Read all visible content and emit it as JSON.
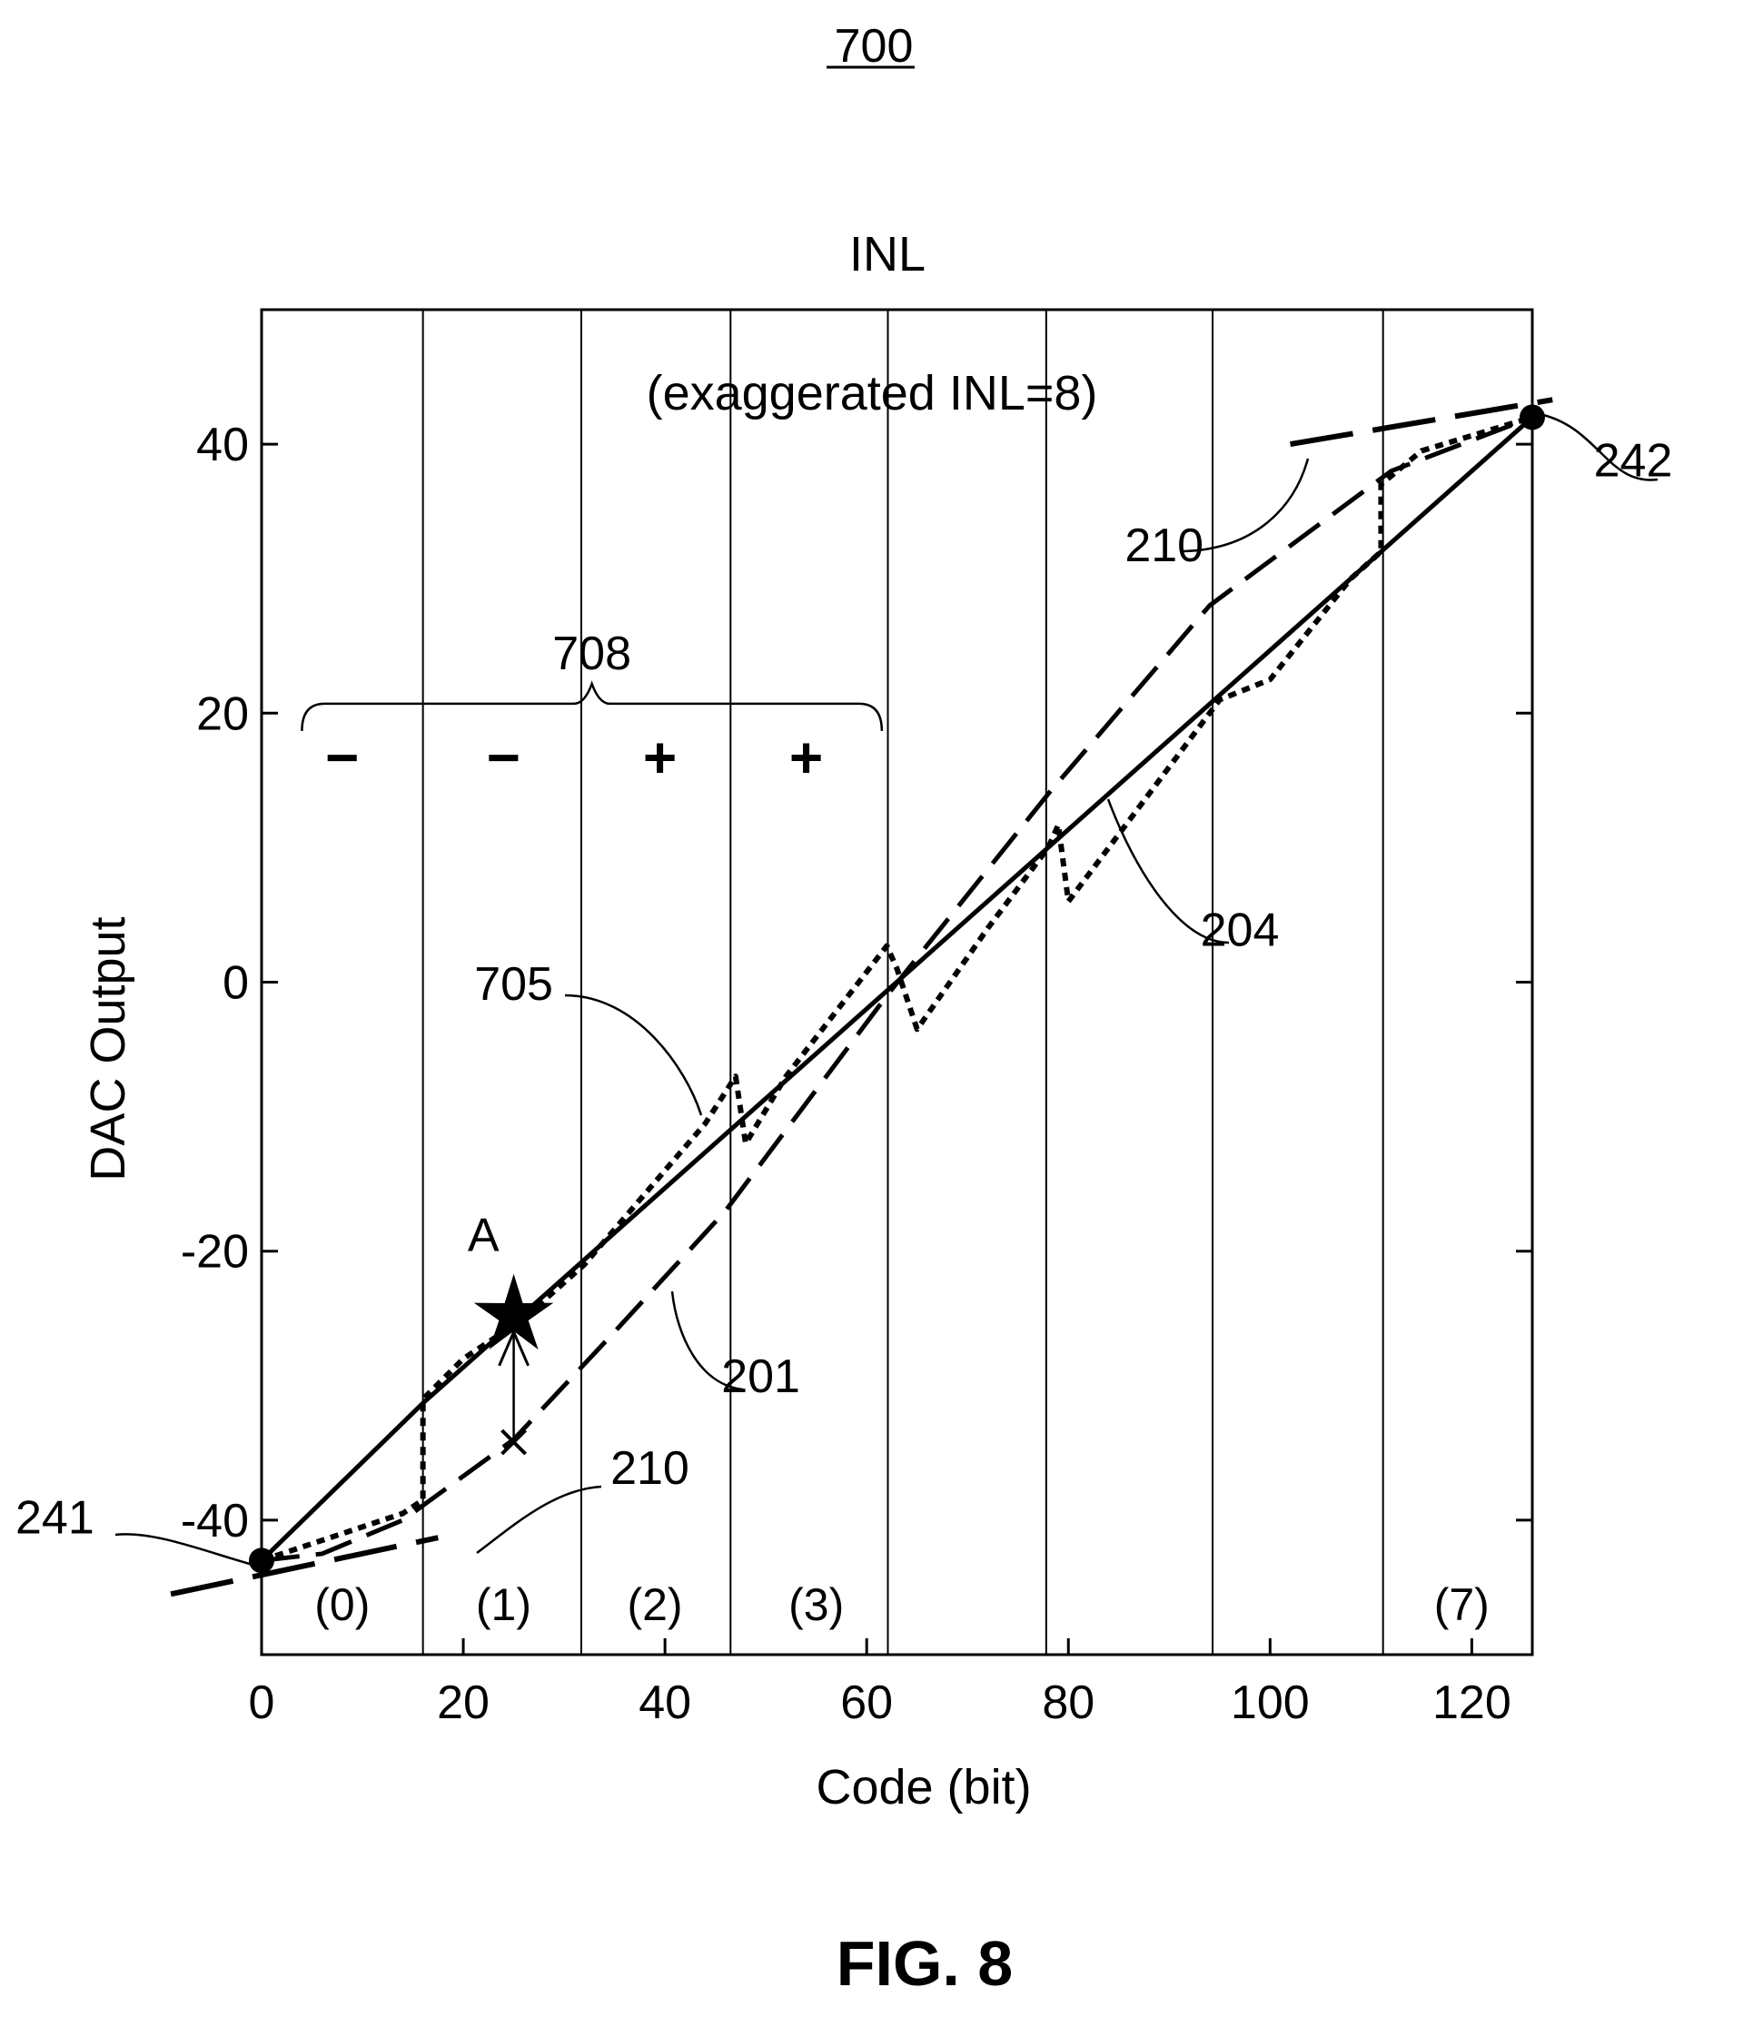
{
  "figure_number": "700",
  "figure_caption": "FIG. 8",
  "chart_data": {
    "type": "line",
    "title": "INL",
    "subtitle": "(exaggerated INL=8)",
    "xlabel": "Code (bit)",
    "ylabel": "DAC Output",
    "xlim": [
      0,
      126
    ],
    "ylim": [
      -50,
      50
    ],
    "x_ticks": [
      0,
      20,
      40,
      60,
      80,
      100,
      120
    ],
    "y_ticks": [
      -40,
      -20,
      0,
      20,
      40
    ],
    "segment_boundaries": [
      16,
      31.7,
      46.5,
      62.1,
      77.8,
      94.3,
      111.2
    ],
    "segment_labels": [
      {
        "text": "(0)",
        "x": 8
      },
      {
        "text": "(1)",
        "x": 24
      },
      {
        "text": "(2)",
        "x": 39
      },
      {
        "text": "(3)",
        "x": 55
      },
      {
        "text": "(7)",
        "x": 119
      }
    ],
    "bracket": {
      "label": "708",
      "x_range": [
        4,
        61.5
      ],
      "y": 20.7
    },
    "signs": [
      {
        "text": "−",
        "x": 8,
        "y": 16.7
      },
      {
        "text": "−",
        "x": 24,
        "y": 16.7
      },
      {
        "text": "+",
        "x": 39.5,
        "y": 16.7
      },
      {
        "text": "+",
        "x": 54,
        "y": 16.7
      }
    ],
    "series": [
      {
        "id": "204",
        "style": "solid",
        "x": [
          0,
          16,
          126
        ],
        "y": [
          -43,
          -31.3,
          42
        ]
      },
      {
        "id": "201",
        "style": "dashed",
        "x": [
          0,
          6,
          14,
          25,
          35,
          46,
          62,
          78,
          94,
          112,
          126
        ],
        "y": [
          -43,
          -42.5,
          -40,
          -34,
          -26,
          -17,
          -1,
          14,
          28,
          38,
          42
        ]
      },
      {
        "id": "705",
        "style": "dotted",
        "x": [
          0,
          8,
          14,
          16,
          16,
          20,
          26,
          32,
          40,
          44,
          47,
          48,
          52,
          62,
          63,
          65,
          72,
          78,
          79,
          80,
          87,
          92,
          95,
          100,
          108,
          111,
          111,
          115,
          126
        ],
        "y": [
          -43,
          -41,
          -39.5,
          -38.5,
          -31,
          -28,
          -25,
          -21,
          -14,
          -10.5,
          -7,
          -12,
          -7,
          2.7,
          1,
          -3.5,
          4,
          10,
          11.7,
          6,
          13,
          18,
          21,
          22.5,
          30,
          32,
          37,
          39.5,
          42
        ]
      },
      {
        "id": "210",
        "style": "long-dash",
        "segments": [
          {
            "x": [
              -9,
              17.5
            ],
            "y": [
              -45.5,
              -41.3
            ]
          },
          {
            "x": [
              102,
              128
            ],
            "y": [
              40,
              43.3
            ]
          }
        ]
      }
    ],
    "points": [
      {
        "id": "241",
        "x": 0,
        "y": -43
      },
      {
        "id": "242",
        "x": 126,
        "y": 42
      }
    ],
    "markers": [
      {
        "id": "A",
        "symbol": "star",
        "x": 25,
        "y": -24.8
      },
      {
        "id": "x-mark",
        "symbol": "x",
        "x": 25,
        "y": -34.2
      }
    ],
    "annotations": [
      {
        "text": "A",
        "x": 22,
        "y": -20
      },
      {
        "text": "204",
        "x": 97,
        "y": 2.7
      },
      {
        "text": "201",
        "x": 49.5,
        "y": -30.5
      },
      {
        "text": "705",
        "x": 25,
        "y": -1.3
      },
      {
        "text": "210",
        "x": 89.5,
        "y": 31.3
      },
      {
        "text": "210",
        "x": 38.5,
        "y": -37.3
      },
      {
        "text": "241",
        "x": -20.5,
        "y": -41
      },
      {
        "text": "242",
        "x": 136,
        "y": 37.6
      }
    ]
  }
}
